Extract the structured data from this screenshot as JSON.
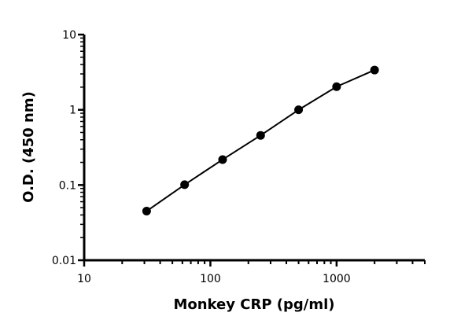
{
  "chart_data": {
    "type": "line",
    "title": "",
    "xlabel": "Monkey CRP (pg/ml)",
    "ylabel": "O.D. (450 nm)",
    "xscale": "log",
    "yscale": "log",
    "xlim": [
      10,
      5000
    ],
    "ylim": [
      0.01,
      10
    ],
    "xticks": [
      {
        "value": 10,
        "label": "10"
      },
      {
        "value": 100,
        "label": "100"
      },
      {
        "value": 1000,
        "label": "1000"
      }
    ],
    "yticks": [
      {
        "value": 0.01,
        "label": "0.01"
      },
      {
        "value": 0.1,
        "label": "0.1"
      },
      {
        "value": 1,
        "label": "1"
      },
      {
        "value": 10,
        "label": "10"
      }
    ],
    "grid": false,
    "series": [
      {
        "x": [
          31.25,
          62.5,
          125,
          250,
          500,
          1000,
          2000
        ],
        "y": [
          0.045,
          0.101,
          0.218,
          0.457,
          1.0,
          2.03,
          3.38
        ],
        "color": "#000000",
        "marker": "circle"
      }
    ]
  }
}
